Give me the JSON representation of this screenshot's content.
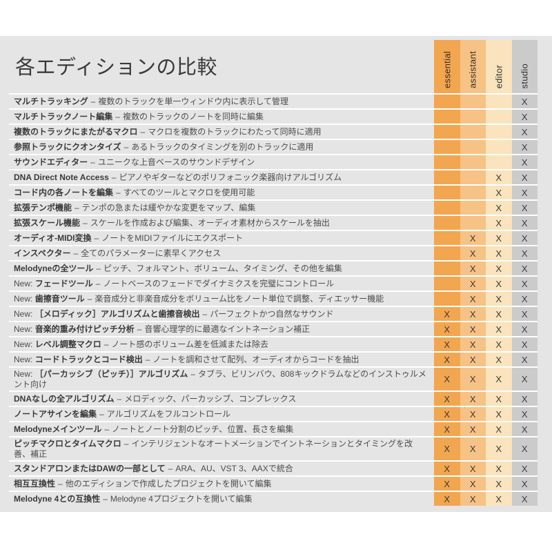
{
  "page": {
    "title": "各エディションの比較",
    "background": "#ffffff",
    "content_background": "#e5e5e5",
    "separator_color": "#ffffff",
    "text_color": "#3a3a3a"
  },
  "mark_glyph": "X",
  "new_prefix": "New:",
  "name_desc_separator": "–",
  "editions": [
    {
      "label": "essential",
      "color": "#f2a64f"
    },
    {
      "label": "assistant",
      "color": "#f6c286"
    },
    {
      "label": "editor",
      "color": "#fae3bd"
    },
    {
      "label": "studio",
      "color": "#cbcbcb"
    }
  ],
  "rows": [
    {
      "new": false,
      "name": "マルチトラッキング",
      "desc": "複数のトラックを単一ウィンドウ内に表示して管理",
      "marks": [
        false,
        false,
        false,
        true
      ]
    },
    {
      "new": false,
      "name": "マルチトラックノート編集",
      "desc": "複数のトラックのノートを同時に編集",
      "marks": [
        false,
        false,
        false,
        true
      ]
    },
    {
      "new": false,
      "name": "複数のトラックにまたがるマクロ",
      "desc": "マクロを複数のトラックにわたって同時に適用",
      "marks": [
        false,
        false,
        false,
        true
      ]
    },
    {
      "new": false,
      "name": "参照トラックにクオンタイズ",
      "desc": "あるトラックのタイミングを別のトラックに適用",
      "marks": [
        false,
        false,
        false,
        true
      ]
    },
    {
      "new": false,
      "name": "サウンドエディター",
      "desc": "ユニークな上音ベースのサウンドデザイン",
      "marks": [
        false,
        false,
        false,
        true
      ]
    },
    {
      "new": false,
      "name": "DNA Direct Note Access",
      "desc": "ピアノやギターなどのポリフォニック楽器向けアルゴリズム",
      "marks": [
        false,
        false,
        true,
        true
      ]
    },
    {
      "new": false,
      "name": "コード内の各ノートを編集",
      "desc": "すべてのツールとマクロを使用可能",
      "marks": [
        false,
        false,
        true,
        true
      ]
    },
    {
      "new": false,
      "name": "拡張テンポ機能",
      "desc": "テンポの急または緩やかな変更をマップ、編集",
      "marks": [
        false,
        false,
        true,
        true
      ]
    },
    {
      "new": false,
      "name": "拡張スケール機能",
      "desc": "スケールを作成および編集、オーディオ素材からスケールを抽出",
      "marks": [
        false,
        false,
        true,
        true
      ]
    },
    {
      "new": false,
      "name": "オーディオ-MIDI変換",
      "desc": "ノートをMIDIファイルにエクスポート",
      "marks": [
        false,
        true,
        true,
        true
      ]
    },
    {
      "new": false,
      "name": "インスペクター",
      "desc": "全てのパラメーターに素早くアクセス",
      "marks": [
        false,
        true,
        true,
        true
      ]
    },
    {
      "new": false,
      "name": "Melodyneの全ツール",
      "desc": "ピッチ、フォルマント、ボリューム、タイミング、その他を編集",
      "marks": [
        false,
        true,
        true,
        true
      ]
    },
    {
      "new": true,
      "name": "フェードツール",
      "desc": "ノートベースのフェードでダイナミクスを完璧にコントロール",
      "marks": [
        false,
        true,
        true,
        true
      ]
    },
    {
      "new": true,
      "name": "歯擦音ツール",
      "desc": "楽音成分と非楽音成分をボリューム比をノート単位で調整、ディエッサー機能",
      "marks": [
        false,
        true,
        true,
        true
      ]
    },
    {
      "new": true,
      "name": "［メロディック］アルゴリズムと歯擦音検出",
      "desc": "パーフェクトかつ自然なサウンド",
      "marks": [
        true,
        true,
        true,
        true
      ]
    },
    {
      "new": true,
      "name": "音楽的重み付けピッチ分析",
      "desc": "音響心理学的に最適なイントネーション補正",
      "marks": [
        true,
        true,
        true,
        true
      ]
    },
    {
      "new": true,
      "name": "レベル調整マクロ",
      "desc": "ノート感のボリューム差を低減または除去",
      "marks": [
        true,
        true,
        true,
        true
      ]
    },
    {
      "new": true,
      "name": "コードトラックとコード検出",
      "desc": "ノートを調和させて配列、オーディオからコードを抽出",
      "marks": [
        true,
        true,
        true,
        true
      ]
    },
    {
      "new": true,
      "name": "［パーカッシブ（ピッチ）］アルゴリズム",
      "desc": "タブラ、ビリンバウ、808キックドラムなどのインストゥルメント向け",
      "marks": [
        true,
        true,
        true,
        true
      ]
    },
    {
      "new": false,
      "name": "DNAなしの全アルゴリズム",
      "desc": "メロディック、パーカッシブ、コンプレックス",
      "marks": [
        true,
        true,
        true,
        true
      ]
    },
    {
      "new": false,
      "name": "ノートアサインを編集",
      "desc": "アルゴリズムをフルコントロール",
      "marks": [
        true,
        true,
        true,
        true
      ]
    },
    {
      "new": false,
      "name": "Melodyneメインツール",
      "desc": "ノートとノート分割のピッチ、位置、長さを編集",
      "marks": [
        true,
        true,
        true,
        true
      ]
    },
    {
      "new": false,
      "name": "ピッチマクロとタイムマクロ",
      "desc": "インテリジェントなオートメーションでイントネーションとタイミングを改善、補正",
      "marks": [
        true,
        true,
        true,
        true
      ]
    },
    {
      "new": false,
      "name": "スタンドアロンまたはDAWの一部として",
      "desc": "ARA、AU、VST 3、AAXで統合",
      "marks": [
        true,
        true,
        true,
        true
      ]
    },
    {
      "new": false,
      "name": "相互互換性",
      "desc": "他のエディションで作成したプロジェクトを開いて編集",
      "marks": [
        true,
        true,
        true,
        true
      ]
    },
    {
      "new": false,
      "name": "Melodyne 4との互換性",
      "desc": "Melodyne 4プロジェクトを開いて編集",
      "marks": [
        true,
        true,
        true,
        true
      ]
    }
  ]
}
